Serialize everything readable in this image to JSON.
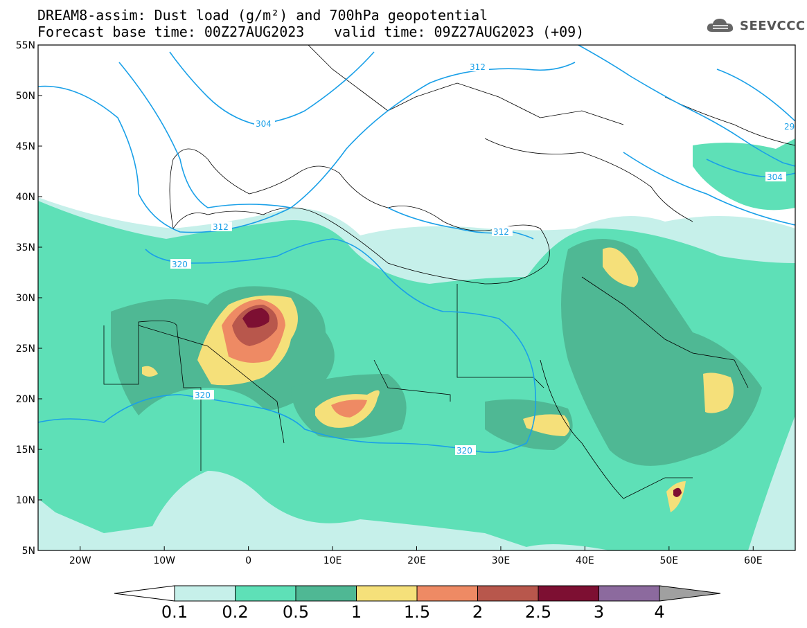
{
  "title_line1": "DREAM8-assim: Dust load (g/m²) and 700hPa geopotential",
  "title_line2a": "Forecast base time: 00Z27AUG2023",
  "title_line2b": "valid time: 09Z27AUG2023 (+09)",
  "logo_text": "SEEVCCC",
  "axes": {
    "lat_labels": [
      "55N",
      "50N",
      "45N",
      "40N",
      "35N",
      "30N",
      "25N",
      "20N",
      "15N",
      "10N",
      "5N"
    ],
    "lon_labels": [
      "20W",
      "10W",
      "0",
      "10E",
      "20E",
      "30E",
      "40E",
      "50E",
      "60E"
    ],
    "lon_range": [
      -25,
      65
    ],
    "lat_range": [
      5,
      55
    ]
  },
  "contour_labels": [
    "312",
    "304",
    "312",
    "320",
    "320",
    "320",
    "312",
    "304",
    "29"
  ],
  "colorbar": {
    "ticks": [
      "0.1",
      "0.2",
      "0.5",
      "1",
      "1.5",
      "2",
      "2.5",
      "3",
      "4"
    ],
    "colors": [
      "#c6f0ea",
      "#5ee0b7",
      "#4fb894",
      "#f5e07a",
      "#ee8a64",
      "#b8574c",
      "#7d0f32",
      "#8c6a9e"
    ],
    "below_color": "#ffffff",
    "above_color": "#a0a0a0"
  }
}
